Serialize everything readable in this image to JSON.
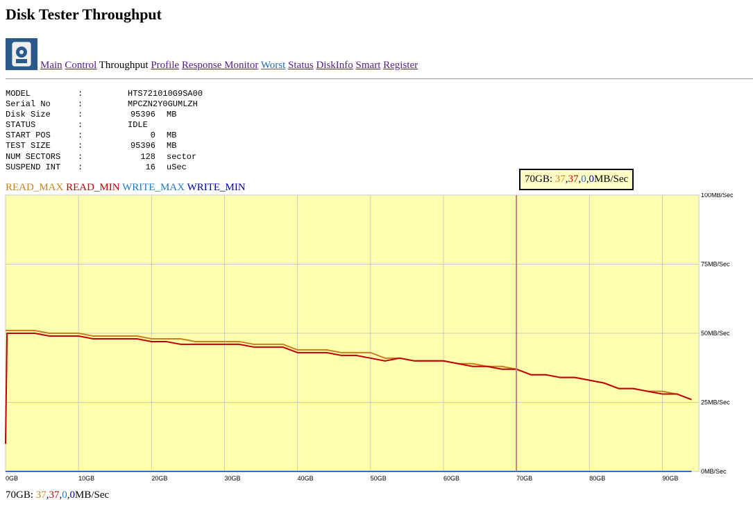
{
  "header": {
    "title": "Disk Tester Throughput"
  },
  "nav": {
    "links": [
      "Main",
      "Control"
    ],
    "current": "Throughput",
    "links2": [
      "Profile",
      "Response Monitor",
      "Worst",
      "Status",
      "DiskInfo",
      "Smart",
      "Register"
    ]
  },
  "info": {
    "rows": [
      [
        "MODEL",
        "HTS721010G9SA00",
        ""
      ],
      [
        "Serial No",
        "MPCZN2Y0GUMLZH",
        ""
      ],
      [
        "Disk Size",
        95396,
        "MB"
      ],
      [
        "STATUS",
        "IDLE",
        ""
      ],
      [
        "START POS",
        0,
        "MB"
      ],
      [
        "TEST SIZE",
        95396,
        "MB"
      ],
      [
        "NUM SECTORS",
        128,
        "sector"
      ],
      [
        "SUSPEND INT",
        16,
        "uSec"
      ]
    ]
  },
  "hover": {
    "x": 70,
    "label": "70GB",
    "values": [
      37,
      37,
      0,
      0
    ],
    "unit": "MB/Sec"
  },
  "chart_data": {
    "type": "line",
    "background": "#ffffb0",
    "grid": true,
    "x": [
      0,
      0.2,
      2,
      4,
      6,
      8,
      10,
      12,
      14,
      16,
      18,
      20,
      22,
      24,
      26,
      28,
      30,
      32,
      34,
      36,
      38,
      40,
      42,
      44,
      46,
      48,
      50,
      52,
      54,
      56,
      58,
      60,
      62,
      64,
      66,
      68,
      70,
      72,
      74,
      76,
      78,
      80,
      82,
      84,
      86,
      88,
      90,
      92,
      94
    ],
    "xlim": [
      0,
      95
    ],
    "xticks": [
      {
        "value": 0,
        "label": "0GB"
      },
      {
        "value": 10,
        "label": "10GB"
      },
      {
        "value": 20,
        "label": "20GB"
      },
      {
        "value": 30,
        "label": "30GB"
      },
      {
        "value": 40,
        "label": "40GB"
      },
      {
        "value": 50,
        "label": "50GB"
      },
      {
        "value": 60,
        "label": "60GB"
      },
      {
        "value": 70,
        "label": "70GB"
      },
      {
        "value": 80,
        "label": "80GB"
      },
      {
        "value": 90,
        "label": "90GB"
      }
    ],
    "ylim": [
      0,
      100
    ],
    "yticks": [
      {
        "value": 0,
        "label": "0MB/Sec"
      },
      {
        "value": 25,
        "label": "25MB/Sec"
      },
      {
        "value": 50,
        "label": "50MB/Sec"
      },
      {
        "value": 75,
        "label": "75MB/Sec"
      },
      {
        "value": 100,
        "label": "100MB/Sec"
      }
    ],
    "series": [
      {
        "name": "READ_MAX",
        "color": "#c8801e",
        "values": [
          51,
          51,
          51,
          51,
          50,
          50,
          50,
          49,
          49,
          49,
          49,
          48,
          48,
          48,
          47,
          47,
          47,
          47,
          46,
          46,
          46,
          44,
          44,
          44,
          43,
          43,
          43,
          41,
          41,
          40,
          40,
          40,
          39,
          39,
          38,
          38,
          37,
          35,
          35,
          34,
          34,
          33,
          32,
          30,
          30,
          29,
          29,
          28,
          26
        ]
      },
      {
        "name": "READ_MIN",
        "color": "#c00000",
        "values": [
          10,
          50,
          50,
          50,
          49,
          49,
          49,
          48,
          48,
          48,
          48,
          47,
          47,
          46,
          46,
          46,
          46,
          46,
          45,
          45,
          45,
          43,
          43,
          43,
          42,
          42,
          41,
          40,
          41,
          40,
          40,
          40,
          39,
          38,
          38,
          37,
          37,
          35,
          35,
          34,
          34,
          33,
          32,
          30,
          30,
          29,
          28,
          28,
          26
        ]
      },
      {
        "name": "WRITE_MAX",
        "color": "#1e78c8",
        "values": [
          0,
          0,
          0,
          0,
          0,
          0,
          0,
          0,
          0,
          0,
          0,
          0,
          0,
          0,
          0,
          0,
          0,
          0,
          0,
          0,
          0,
          0,
          0,
          0,
          0,
          0,
          0,
          0,
          0,
          0,
          0,
          0,
          0,
          0,
          0,
          0,
          0,
          0,
          0,
          0,
          0,
          0,
          0,
          0,
          0,
          0,
          0,
          0,
          0
        ]
      },
      {
        "name": "WRITE_MIN",
        "color": "#0000a0",
        "values": [
          0,
          0,
          0,
          0,
          0,
          0,
          0,
          0,
          0,
          0,
          0,
          0,
          0,
          0,
          0,
          0,
          0,
          0,
          0,
          0,
          0,
          0,
          0,
          0,
          0,
          0,
          0,
          0,
          0,
          0,
          0,
          0,
          0,
          0,
          0,
          0,
          0,
          0,
          0,
          0,
          0,
          0,
          0,
          0,
          0,
          0,
          0,
          0,
          0
        ]
      }
    ]
  }
}
